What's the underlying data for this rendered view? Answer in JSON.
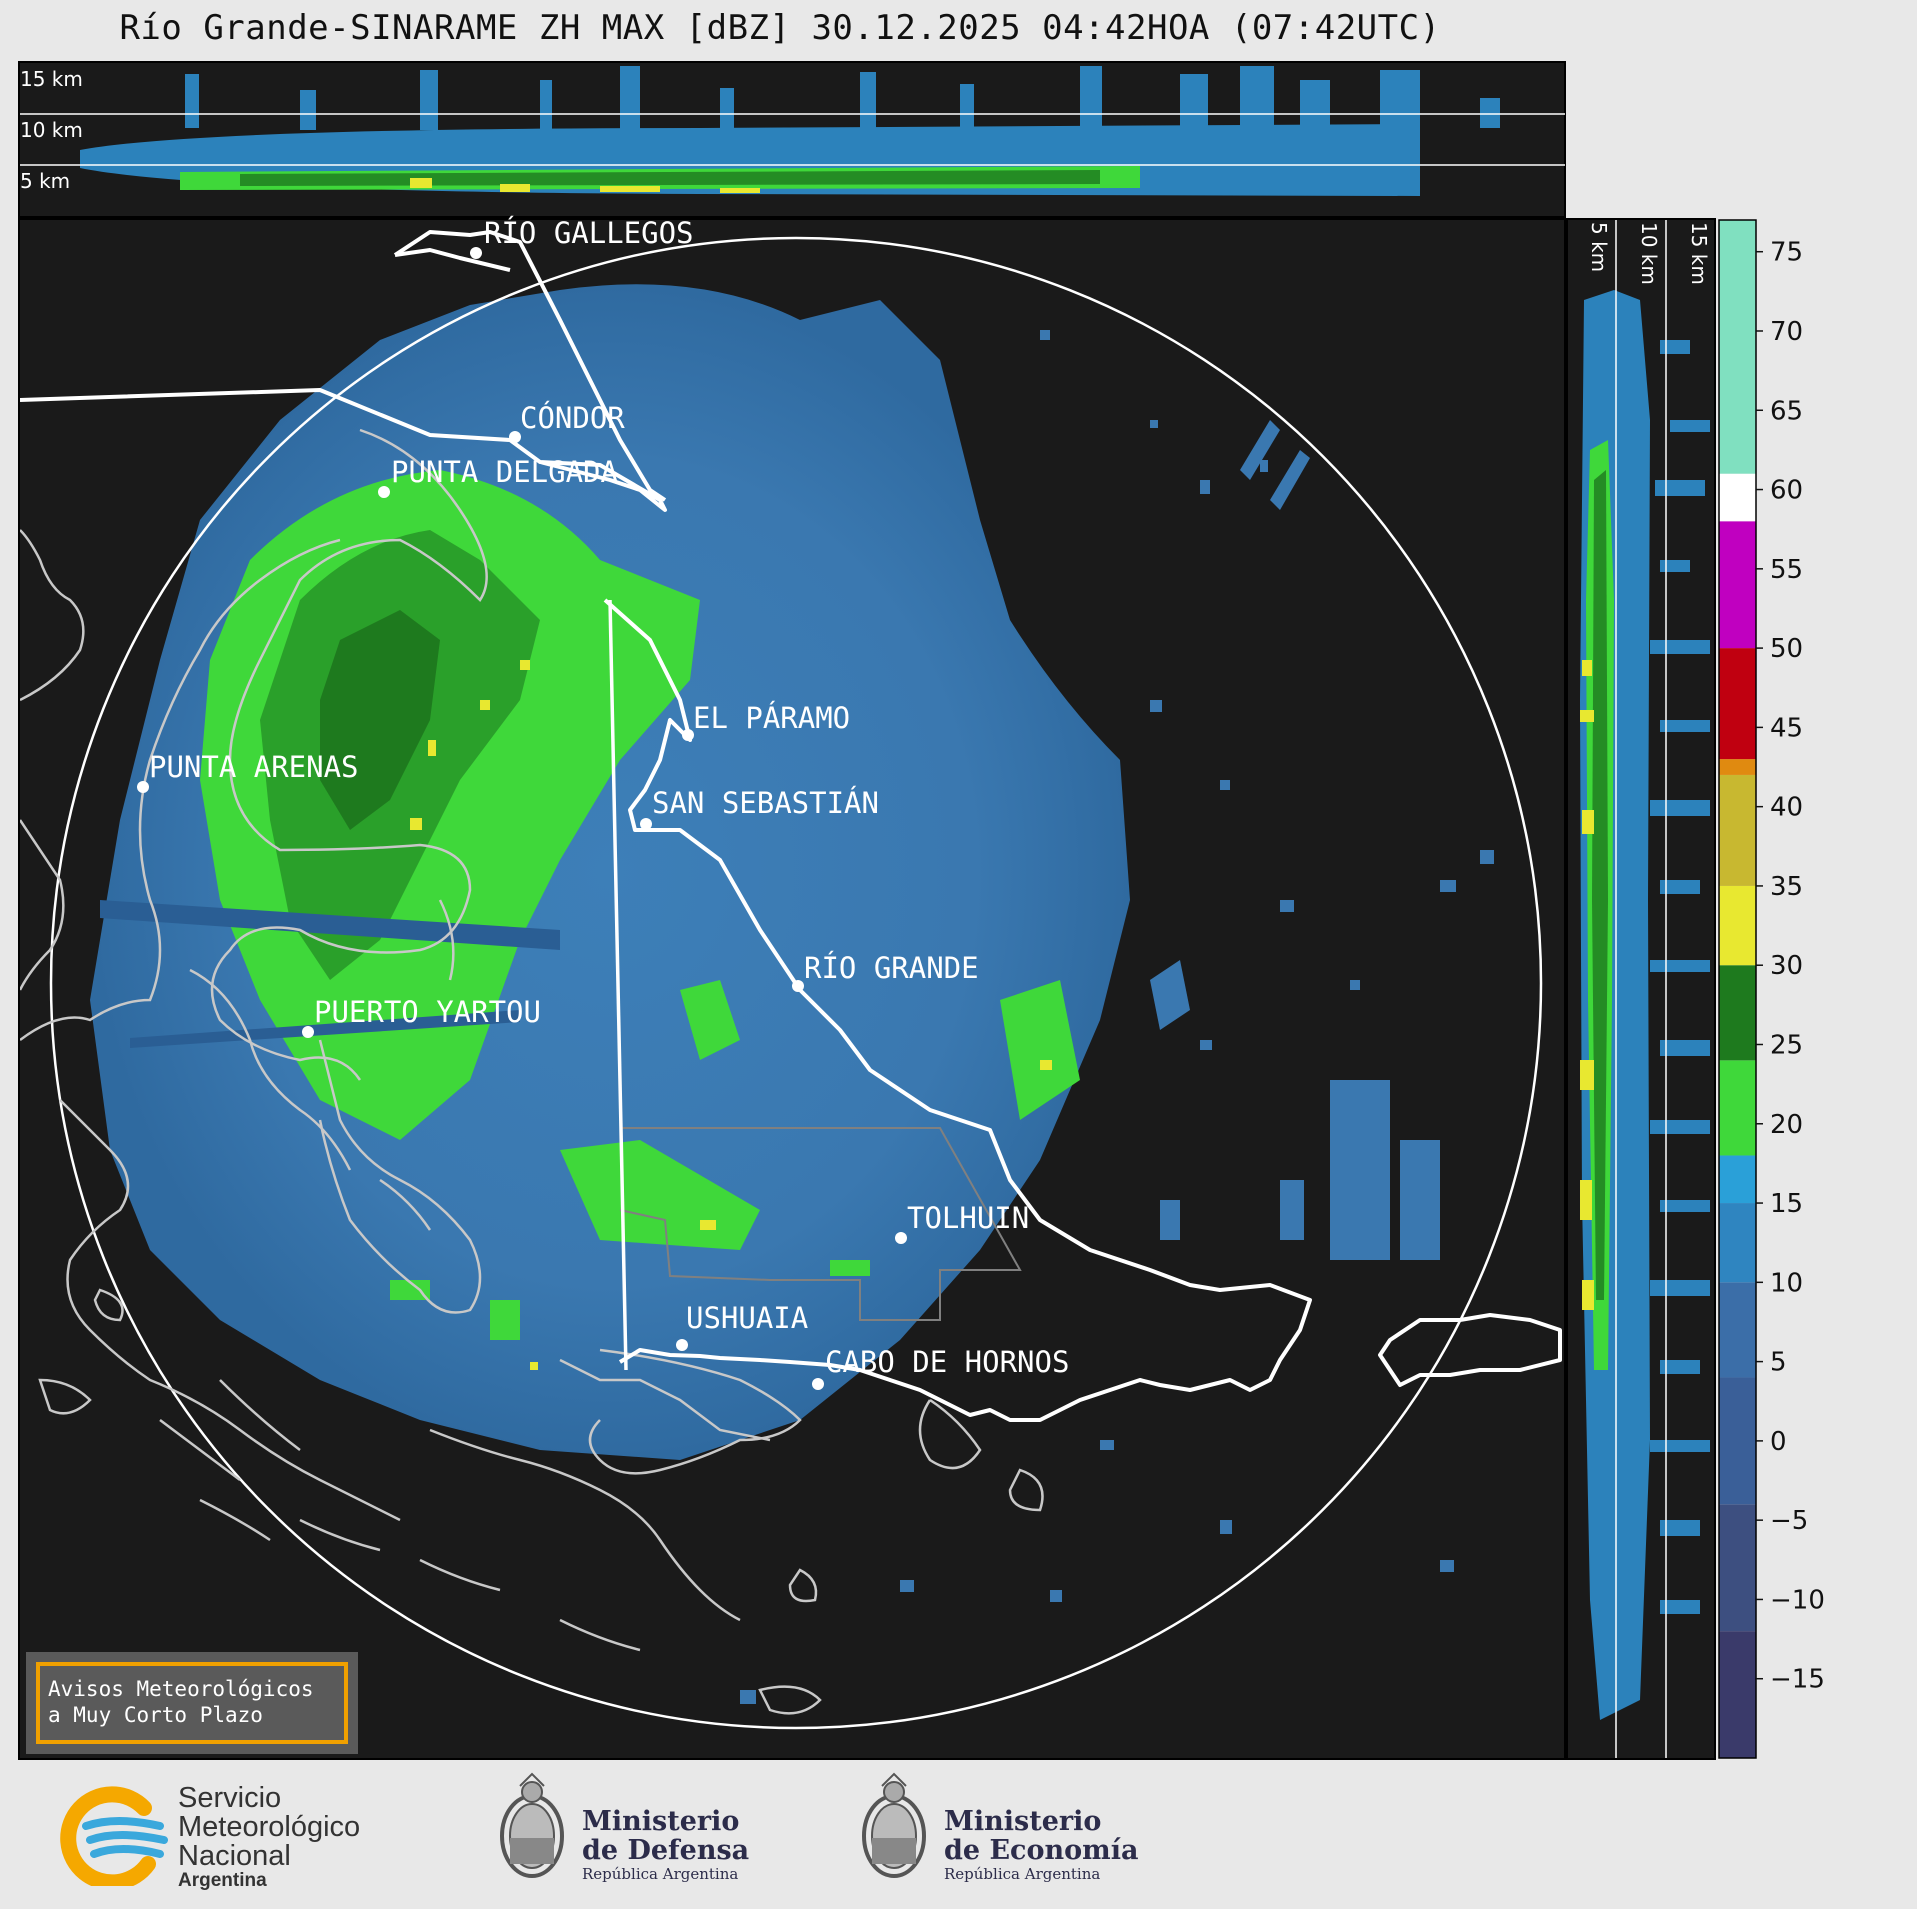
{
  "title": "Río Grande-SINARAME ZH MAX [dBZ] 30.12.2025 04:42HOA (07:42UTC)",
  "top_profile": {
    "height_labels": [
      "15 km",
      "10 km",
      "5 km"
    ]
  },
  "side_profile": {
    "height_labels": [
      "5 km",
      "10 km",
      "15 km"
    ]
  },
  "cities": [
    {
      "name": "RÍO GALLEGOS"
    },
    {
      "name": "CÓNDOR"
    },
    {
      "name": "PUNTA DELGADA"
    },
    {
      "name": "EL PÁRAMO"
    },
    {
      "name": "PUNTA ARENAS"
    },
    {
      "name": "SAN SEBASTIÁN"
    },
    {
      "name": "RÍO GRANDE"
    },
    {
      "name": "PUERTO YARTOU"
    },
    {
      "name": "TOLHUIN"
    },
    {
      "name": "USHUAIA"
    },
    {
      "name": "CABO DE HORNOS"
    }
  ],
  "colorbar": {
    "unit": "dBZ",
    "ticks": [
      "75",
      "70",
      "65",
      "60",
      "55",
      "50",
      "45",
      "40",
      "35",
      "30",
      "25",
      "20",
      "15",
      "10",
      "5",
      "0",
      "−5",
      "−10",
      "−15"
    ],
    "tick_values": [
      75,
      70,
      65,
      60,
      55,
      50,
      45,
      40,
      35,
      30,
      25,
      20,
      15,
      10,
      5,
      0,
      -5,
      -10,
      -15
    ],
    "range": [
      -20,
      77
    ],
    "colors": {
      "low": "#3a3a6a",
      "blue_mid": "#3b6ea8",
      "blue_light": "#2aa0d8",
      "green": "#3fd83a",
      "green_dark": "#1e7a1e",
      "yellow": "#e8e830",
      "orange": "#e08a10",
      "red": "#c00010",
      "magenta": "#c000c0",
      "white": "#ffffff",
      "aqua": "#80e0c0"
    }
  },
  "avisos": {
    "line1": "Avisos Meteorológicos",
    "line2": "a Muy Corto Plazo"
  },
  "logos": {
    "smn": {
      "line1": "Servicio",
      "line2": "Meteorológico",
      "line3": "Nacional",
      "line4": "Argentina"
    },
    "defensa": {
      "line1": "Ministerio",
      "line2": "de Defensa",
      "line3": "República Argentina"
    },
    "economia": {
      "line1": "Ministerio",
      "line2": "de Economía",
      "line3": "República Argentina"
    }
  }
}
